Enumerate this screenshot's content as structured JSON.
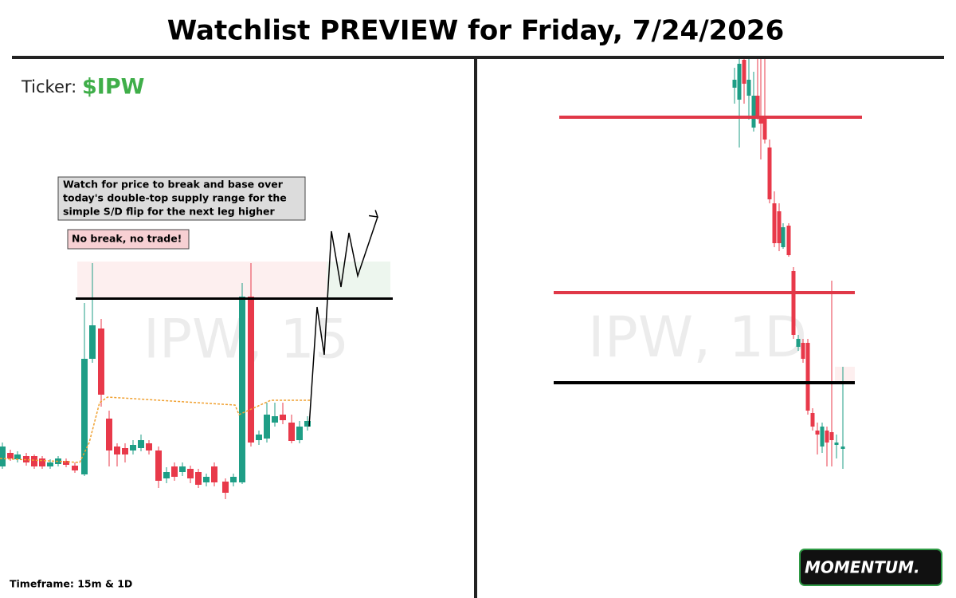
{
  "header": {
    "title": "Watchlist PREVIEW for Friday, 7/24/2026"
  },
  "left_panel": {
    "ticker_label": "Ticker:",
    "ticker": "$IPW",
    "note_lines": [
      "Watch for price to break and base over",
      "today's double-top supply range for the",
      "simple S/D flip for the next leg higher"
    ],
    "warning": "No break, no trade!",
    "watermark": "IPW, 15"
  },
  "right_panel": {
    "watermark": "IPW, 1D"
  },
  "footer": {
    "timeframe": "Timeframe: 15m & 1D",
    "logo": "MOMENTUM."
  }
}
